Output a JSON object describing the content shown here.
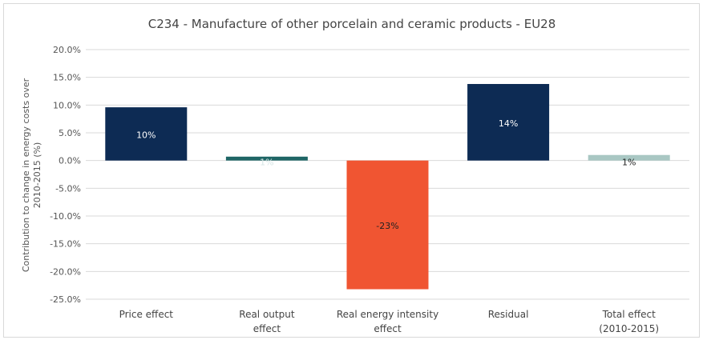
{
  "chart_data": {
    "type": "bar",
    "title": "C234 - Manufacture of other porcelain and ceramic products - EU28",
    "xlabel": "",
    "ylabel": "Contribution to change in energy costs over 2010-2015 (%)",
    "categories": [
      "Price effect",
      "Real output effect",
      "Real energy intensity effect",
      "Residual",
      "Total effect (2010-2015)"
    ],
    "category_lines": [
      [
        "Price effect"
      ],
      [
        "Real output",
        "effect"
      ],
      [
        "Real energy intensity",
        "effect"
      ],
      [
        "Residual"
      ],
      [
        "Total effect",
        "(2010-2015)"
      ]
    ],
    "ylabel_lines": [
      "Contribution to change in energy costs over",
      "2010-2015 (%)"
    ],
    "values": [
      9.6,
      0.7,
      -23.2,
      13.8,
      1.0
    ],
    "data_labels": [
      "10%",
      "1%",
      "-23%",
      "14%",
      "1%"
    ],
    "colors": [
      "#0d2b54",
      "#1f6666",
      "#f05532",
      "#0d2b54",
      "#a9c7c3"
    ],
    "label_colors": [
      "#ffffff",
      "#d7e6e6",
      "#222222",
      "#ffffff",
      "#222222"
    ],
    "ylim": [
      -25,
      20
    ],
    "yticks": [
      -25,
      -20,
      -15,
      -10,
      -5,
      0,
      5,
      10,
      15,
      20
    ],
    "ytick_labels": [
      "-25.0%",
      "-20.0%",
      "-15.0%",
      "-10.0%",
      "-5.0%",
      "0.0%",
      "5.0%",
      "10.0%",
      "15.0%",
      "20.0%"
    ],
    "grid": true,
    "legend": "none"
  }
}
